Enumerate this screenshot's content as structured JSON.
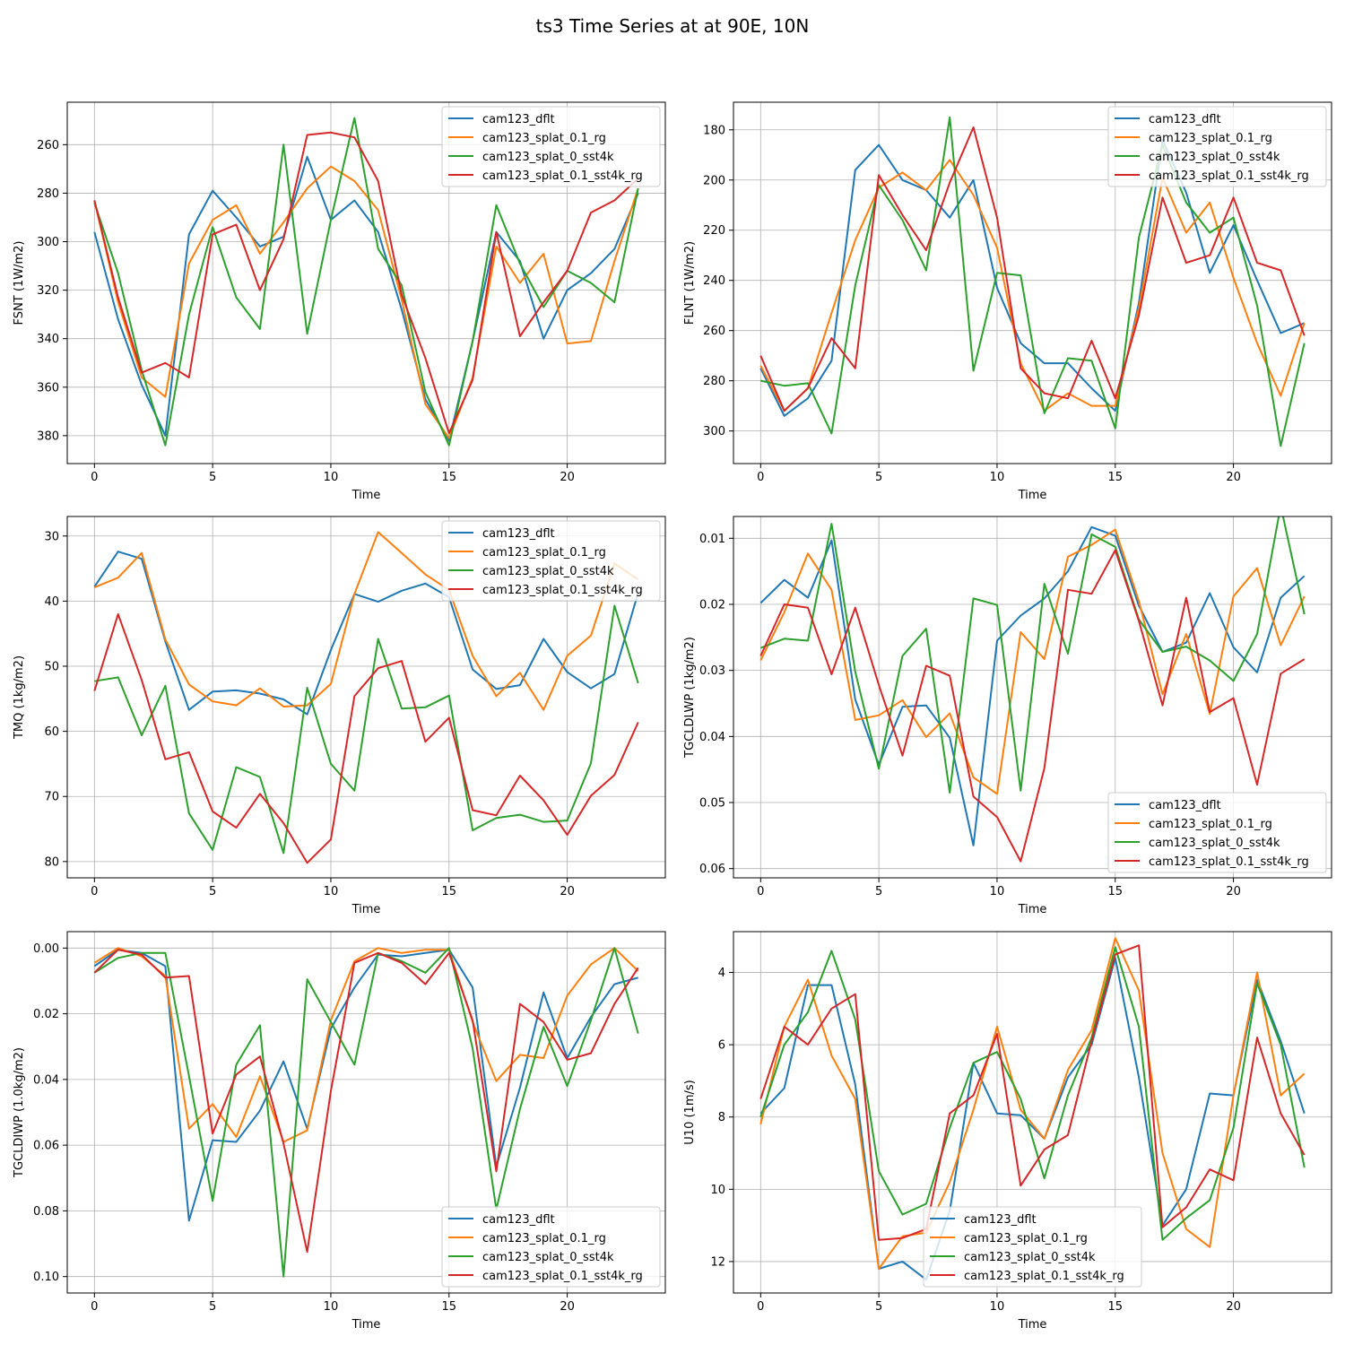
{
  "figure": {
    "title": "ts3 Time Series at at 90E, 10N",
    "colors": [
      "#1f77b4",
      "#ff7f0e",
      "#2ca02c",
      "#d62728"
    ],
    "series_names": [
      "cam123_dflt",
      "cam123_splat_0.1_rg",
      "cam123_splat_0_sst4k",
      "cam123_splat_0.1_sst4k_rg"
    ]
  },
  "chart_data": [
    {
      "type": "line",
      "title": "",
      "xlabel": "Time",
      "ylabel": "FSNT (1W/m2)",
      "xlim": [
        -1.15,
        24.15
      ],
      "ylim": [
        391.5,
        242.5
      ],
      "y_inverted": true,
      "xticks": [
        0,
        5,
        10,
        15,
        20
      ],
      "yticks": [
        260,
        280,
        300,
        320,
        340,
        360,
        380
      ],
      "grid": true,
      "legend": "upper right",
      "x": [
        0,
        1,
        2,
        3,
        4,
        5,
        6,
        7,
        8,
        9,
        10,
        11,
        12,
        13,
        14,
        15,
        16,
        17,
        18,
        19,
        20,
        21,
        22,
        23
      ],
      "series": [
        {
          "name": "cam123_dflt",
          "values": [
            296,
            332,
            359,
            380,
            297,
            279,
            290,
            302,
            298,
            265,
            291,
            283,
            296,
            328,
            365,
            382,
            341,
            296,
            308,
            340,
            320,
            313,
            303,
            280
          ]
        },
        {
          "name": "cam123_splat_0.1_rg",
          "values": [
            283,
            325,
            356,
            364,
            309,
            291,
            285,
            305,
            292,
            278,
            269,
            275,
            287,
            324,
            367,
            381,
            356,
            302,
            317,
            305,
            342,
            341,
            308,
            278
          ]
        },
        {
          "name": "cam123_splat_0_sst4k",
          "values": [
            284,
            313,
            353,
            384,
            330,
            294,
            323,
            336,
            260,
            338,
            291,
            249,
            303,
            318,
            362,
            384,
            341,
            285,
            309,
            327,
            312,
            317,
            325,
            278
          ]
        },
        {
          "name": "cam123_splat_0.1_sst4k_rg",
          "values": [
            283,
            323,
            354,
            350,
            356,
            297,
            293,
            320,
            299,
            256,
            255,
            257,
            275,
            322,
            348,
            379,
            357,
            296,
            339,
            325,
            312,
            288,
            283,
            274
          ]
        }
      ]
    },
    {
      "type": "line",
      "title": "",
      "xlabel": "Time",
      "ylabel": "FLNT (1W/m2)",
      "xlim": [
        -1.15,
        24.15
      ],
      "ylim": [
        313,
        169
      ],
      "y_inverted": true,
      "xticks": [
        0,
        5,
        10,
        15,
        20
      ],
      "yticks": [
        180,
        200,
        220,
        240,
        260,
        280,
        300
      ],
      "grid": true,
      "legend": "upper right",
      "x": [
        0,
        1,
        2,
        3,
        4,
        5,
        6,
        7,
        8,
        9,
        10,
        11,
        12,
        13,
        14,
        15,
        16,
        17,
        18,
        19,
        20,
        21,
        22,
        23
      ],
      "series": [
        {
          "name": "cam123_dflt",
          "values": [
            275,
            294,
            287,
            272,
            196,
            186,
            200,
            204,
            215,
            200,
            243,
            265,
            273,
            273,
            283,
            292,
            249,
            184,
            205,
            237,
            218,
            240,
            261,
            257
          ]
        },
        {
          "name": "cam123_splat_0.1_rg",
          "values": [
            274,
            292,
            283,
            253,
            224,
            203,
            197,
            204,
            192,
            206,
            227,
            273,
            292,
            285,
            290,
            290,
            251,
            199,
            221,
            209,
            239,
            265,
            286,
            257
          ]
        },
        {
          "name": "cam123_splat_0_sst4k",
          "values": [
            280,
            282,
            281,
            301,
            242,
            202,
            216,
            236,
            175,
            276,
            237,
            238,
            293,
            271,
            272,
            299,
            223,
            186,
            209,
            221,
            215,
            250,
            306,
            265
          ]
        },
        {
          "name": "cam123_splat_0.1_sst4k_rg",
          "values": [
            270,
            292,
            283,
            263,
            275,
            198,
            214,
            228,
            201,
            179,
            215,
            275,
            285,
            287,
            264,
            287,
            254,
            207,
            233,
            230,
            207,
            233,
            236,
            262
          ]
        }
      ]
    },
    {
      "type": "line",
      "title": "",
      "xlabel": "Time",
      "ylabel": "TMQ (1kg/m2)",
      "xlim": [
        -1.15,
        24.15
      ],
      "ylim": [
        82.5,
        27.0
      ],
      "y_inverted": true,
      "xticks": [
        0,
        5,
        10,
        15,
        20
      ],
      "yticks": [
        30,
        40,
        50,
        60,
        70,
        80
      ],
      "grid": true,
      "legend": "upper right",
      "x": [
        0,
        1,
        2,
        3,
        4,
        5,
        6,
        7,
        8,
        9,
        10,
        11,
        12,
        13,
        14,
        15,
        16,
        17,
        18,
        19,
        20,
        21,
        22,
        23
      ],
      "series": [
        {
          "name": "cam123_dflt",
          "values": [
            37.8,
            32.4,
            33.5,
            46.2,
            56.7,
            53.9,
            53.7,
            54.2,
            55.1,
            57.4,
            47.5,
            38.9,
            40.1,
            38.4,
            37.3,
            39.4,
            50.5,
            53.5,
            52.9,
            45.8,
            50.9,
            53.4,
            51.2,
            38.7
          ]
        },
        {
          "name": "cam123_splat_0.1_rg",
          "values": [
            37.9,
            36.4,
            32.6,
            45.9,
            52.8,
            55.4,
            56.0,
            53.4,
            56.2,
            56.0,
            52.7,
            38.9,
            29.4,
            32.6,
            35.9,
            38.3,
            48.4,
            54.6,
            51.0,
            56.7,
            48.4,
            45.3,
            34.2,
            36.7
          ]
        },
        {
          "name": "cam123_splat_0_sst4k",
          "values": [
            52.3,
            51.7,
            60.6,
            53.0,
            72.6,
            78.2,
            65.5,
            67.0,
            78.7,
            53.3,
            65.0,
            69.1,
            45.8,
            56.5,
            56.3,
            54.5,
            75.2,
            73.3,
            72.8,
            73.9,
            73.7,
            64.9,
            40.7,
            52.6
          ]
        },
        {
          "name": "cam123_splat_0.1_sst4k_rg",
          "values": [
            53.8,
            42.0,
            52.1,
            64.3,
            63.2,
            72.3,
            74.8,
            69.6,
            74.1,
            80.2,
            76.6,
            54.6,
            50.3,
            49.2,
            61.6,
            57.9,
            72.1,
            72.9,
            66.8,
            70.6,
            75.9,
            69.9,
            66.7,
            58.6
          ]
        }
      ]
    },
    {
      "type": "line",
      "title": "",
      "xlabel": "Time",
      "ylabel": "TGCLDLWP (1kg/m2)",
      "xlim": [
        -1.15,
        24.15
      ],
      "ylim": [
        0.0614,
        0.0067
      ],
      "y_inverted": true,
      "xticks": [
        0,
        5,
        10,
        15,
        20
      ],
      "yticks": [
        0.01,
        0.02,
        0.03,
        0.04,
        0.05,
        0.06
      ],
      "yticklabels": [
        "0.01",
        "0.02",
        "0.03",
        "0.04",
        "0.05",
        "0.06"
      ],
      "grid": true,
      "legend": "lower right",
      "x": [
        0,
        1,
        2,
        3,
        4,
        5,
        6,
        7,
        8,
        9,
        10,
        11,
        12,
        13,
        14,
        15,
        16,
        17,
        18,
        19,
        20,
        21,
        22,
        23
      ],
      "series": [
        {
          "name": "cam123_dflt",
          "values": [
            0.0198,
            0.0163,
            0.019,
            0.0103,
            0.0344,
            0.0443,
            0.0355,
            0.0353,
            0.0402,
            0.0565,
            0.0255,
            0.0217,
            0.0191,
            0.015,
            0.0083,
            0.0096,
            0.0202,
            0.0272,
            0.0258,
            0.0183,
            0.0265,
            0.0303,
            0.019,
            0.0157
          ]
        },
        {
          "name": "cam123_splat_0.1_rg",
          "values": [
            0.0285,
            0.0212,
            0.0123,
            0.0178,
            0.0375,
            0.0368,
            0.0345,
            0.0401,
            0.0365,
            0.0462,
            0.0487,
            0.0242,
            0.0283,
            0.0128,
            0.011,
            0.0087,
            0.0195,
            0.0336,
            0.0245,
            0.0366,
            0.0188,
            0.0145,
            0.0262,
            0.0188
          ]
        },
        {
          "name": "cam123_splat_0_sst4k",
          "values": [
            0.0266,
            0.0252,
            0.0255,
            0.0078,
            0.0302,
            0.0449,
            0.0278,
            0.0237,
            0.0485,
            0.0191,
            0.0201,
            0.0482,
            0.0169,
            0.0275,
            0.0094,
            0.0113,
            0.0223,
            0.0272,
            0.0264,
            0.0285,
            0.0316,
            0.0245,
            0.0051,
            0.0215
          ]
        },
        {
          "name": "cam123_splat_0.1_sst4k_rg",
          "values": [
            0.0278,
            0.02,
            0.0205,
            0.0306,
            0.0205,
            0.0322,
            0.0429,
            0.0293,
            0.0308,
            0.0491,
            0.0522,
            0.0589,
            0.0448,
            0.0178,
            0.0184,
            0.0118,
            0.0225,
            0.0353,
            0.019,
            0.0363,
            0.0342,
            0.0473,
            0.0305,
            0.0283
          ]
        }
      ]
    },
    {
      "type": "line",
      "title": "",
      "xlabel": "Time",
      "ylabel": "TGCLDIWP (1.0kg/m2)",
      "xlim": [
        -1.15,
        24.15
      ],
      "ylim": [
        0.105,
        -0.005
      ],
      "y_inverted": true,
      "xticks": [
        0,
        5,
        10,
        15,
        20
      ],
      "yticks": [
        0.0,
        0.02,
        0.04,
        0.06,
        0.08,
        0.1
      ],
      "yticklabels": [
        "0.00",
        "0.02",
        "0.04",
        "0.06",
        "0.08",
        "0.10"
      ],
      "grid": true,
      "legend": "lower right",
      "x": [
        0,
        1,
        2,
        3,
        4,
        5,
        6,
        7,
        8,
        9,
        10,
        11,
        12,
        13,
        14,
        15,
        16,
        17,
        18,
        19,
        20,
        21,
        22,
        23
      ],
      "series": [
        {
          "name": "cam123_dflt",
          "values": [
            0.0055,
            0.0005,
            0.0015,
            0.0055,
            0.083,
            0.0585,
            0.059,
            0.0495,
            0.0345,
            0.055,
            0.0245,
            0.012,
            0.002,
            0.0025,
            0.0015,
            0.0005,
            0.012,
            0.0665,
            0.0425,
            0.0135,
            0.0335,
            0.021,
            0.011,
            0.009
          ]
        },
        {
          "name": "cam123_splat_0.1_rg",
          "values": [
            0.0045,
            0.0,
            0.0025,
            0.0085,
            0.055,
            0.0475,
            0.0575,
            0.039,
            0.059,
            0.0555,
            0.022,
            0.004,
            0.0,
            0.0015,
            0.0005,
            0.0005,
            0.0225,
            0.0405,
            0.0325,
            0.0335,
            0.0145,
            0.005,
            0.0,
            0.007
          ]
        },
        {
          "name": "cam123_splat_0_sst4k",
          "values": [
            0.0075,
            0.003,
            0.0015,
            0.0015,
            0.039,
            0.077,
            0.0355,
            0.0235,
            0.1,
            0.0095,
            0.0225,
            0.0355,
            0.0015,
            0.004,
            0.0075,
            0.0,
            0.0305,
            0.0795,
            0.049,
            0.024,
            0.042,
            0.022,
            0.0,
            0.026
          ]
        },
        {
          "name": "cam123_splat_0.1_sst4k_rg",
          "values": [
            0.0075,
            0.0005,
            0.002,
            0.009,
            0.0085,
            0.0565,
            0.0385,
            0.033,
            0.0595,
            0.0925,
            0.0435,
            0.0045,
            0.0015,
            0.0045,
            0.011,
            0.0015,
            0.022,
            0.068,
            0.017,
            0.0225,
            0.034,
            0.032,
            0.017,
            0.006
          ]
        }
      ]
    },
    {
      "type": "line",
      "title": "",
      "xlabel": "Time",
      "ylabel": "U10 (1m/s)",
      "xlim": [
        -1.15,
        24.15
      ],
      "ylim": [
        12.87,
        2.87
      ],
      "y_inverted": true,
      "xticks": [
        0,
        5,
        10,
        15,
        20
      ],
      "yticks": [
        4,
        6,
        8,
        10,
        12
      ],
      "grid": true,
      "legend": "lower center",
      "x": [
        0,
        1,
        2,
        3,
        4,
        5,
        6,
        7,
        8,
        9,
        10,
        11,
        12,
        13,
        14,
        15,
        16,
        17,
        18,
        19,
        20,
        21,
        22,
        23
      ],
      "series": [
        {
          "name": "cam123_dflt",
          "values": [
            7.9,
            7.2,
            4.35,
            4.35,
            7.1,
            12.2,
            12.0,
            12.5,
            10.6,
            6.5,
            7.9,
            7.95,
            8.6,
            6.9,
            6.0,
            3.6,
            6.9,
            11.0,
            10.0,
            7.35,
            7.4,
            4.2,
            5.9,
            7.9
          ]
        },
        {
          "name": "cam123_splat_0.1_rg",
          "values": [
            8.2,
            5.5,
            4.2,
            6.3,
            7.5,
            12.2,
            11.3,
            11.2,
            9.8,
            7.8,
            5.5,
            7.8,
            8.6,
            6.7,
            5.6,
            3.05,
            4.5,
            9.0,
            11.1,
            11.6,
            7.4,
            4.0,
            7.4,
            6.8
          ]
        },
        {
          "name": "cam123_splat_0_sst4k",
          "values": [
            8.0,
            6.0,
            5.1,
            3.4,
            5.3,
            9.5,
            10.7,
            10.4,
            8.3,
            6.5,
            6.2,
            7.5,
            9.7,
            7.4,
            5.8,
            3.3,
            5.5,
            11.4,
            10.8,
            10.3,
            8.3,
            4.3,
            6.0,
            9.4
          ]
        },
        {
          "name": "cam123_splat_0.1_sst4k_rg",
          "values": [
            7.5,
            5.5,
            6.0,
            5.0,
            4.6,
            11.4,
            11.35,
            11.1,
            7.9,
            7.4,
            5.7,
            9.9,
            8.9,
            8.5,
            5.9,
            3.5,
            3.25,
            11.05,
            10.5,
            9.45,
            9.75,
            5.8,
            7.9,
            9.05
          ]
        }
      ]
    }
  ]
}
